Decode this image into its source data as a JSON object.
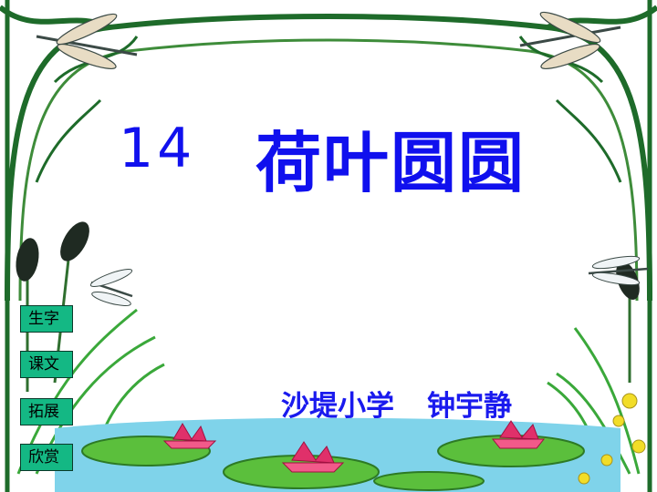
{
  "slide": {
    "title_number": "14",
    "title_text": "荷叶圆圆",
    "school": "沙堤小学",
    "author": "钟宇静"
  },
  "nav": {
    "items": [
      {
        "label": "生字",
        "name": "nav-button-shengzi"
      },
      {
        "label": "课文",
        "name": "nav-button-kewen"
      },
      {
        "label": "拓展",
        "name": "nav-button-tuozhan"
      },
      {
        "label": "欣赏",
        "name": "nav-button-xinshang"
      }
    ]
  },
  "colors": {
    "title": "#1010ee",
    "nav_button": "#14b884",
    "vine": "#1e6b2a",
    "leaf": "#3fa63a",
    "pond": "#7fd3ea",
    "lotus": "#e0306a"
  }
}
